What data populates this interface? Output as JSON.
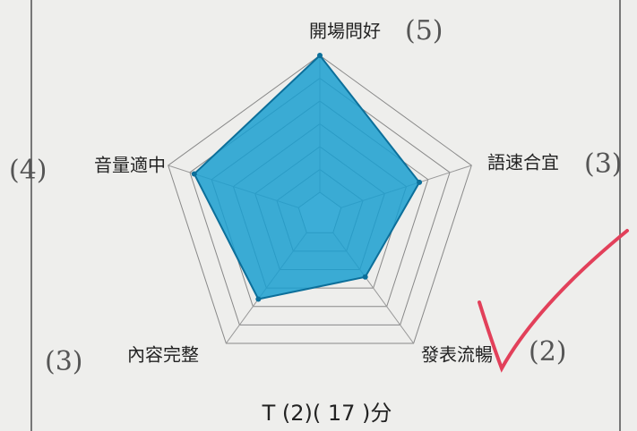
{
  "chart_data": {
    "type": "radar",
    "categories": [
      "開場問好",
      "語速合宜",
      "發表流暢",
      "內容完整",
      "音量適中"
    ],
    "values": [
      5,
      3,
      2,
      3,
      4
    ],
    "value_labels": [
      "(5)",
      "(3)",
      "(2)",
      "(3)",
      "(4)"
    ],
    "rlim": [
      0,
      5
    ],
    "color": "#1a9fd0",
    "footer": "T (2)( 17 )分"
  }
}
